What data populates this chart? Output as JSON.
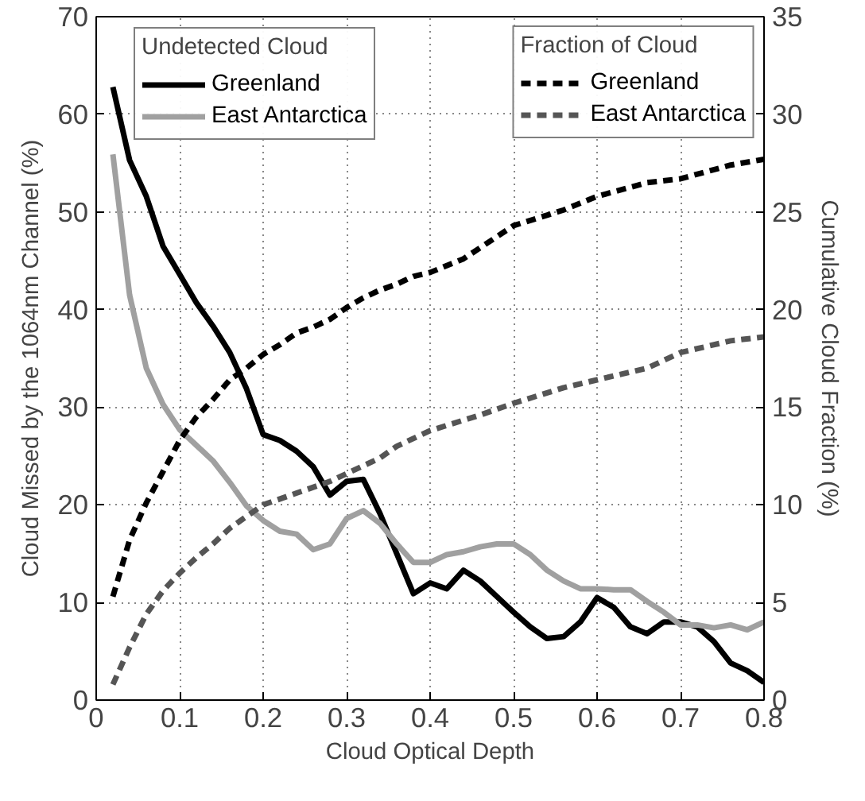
{
  "chart_data": {
    "type": "line",
    "xlabel": "Cloud Optical Depth",
    "ylabel": "Cloud Missed by the 1064nm Channel (%)",
    "y2label": "Cumulative Cloud Fraction (%)",
    "annotations": [
      "Undetected Cloud",
      "Fraction of Cloud"
    ],
    "xlim": [
      0,
      0.8
    ],
    "xticks": [
      0,
      0.1,
      0.2,
      0.3,
      0.4,
      0.5,
      0.6,
      0.7,
      0.8
    ],
    "ylim": [
      0,
      70
    ],
    "yticks": [
      0,
      10,
      20,
      30,
      40,
      50,
      60,
      70
    ],
    "y2lim": [
      0,
      35
    ],
    "y2ticks": [
      0,
      5,
      10,
      15,
      20,
      25,
      30,
      35
    ],
    "grid": true,
    "legend": "top",
    "series": [
      {
        "name": "Greenland",
        "color": "#000000",
        "line_style": "solid",
        "x": [
          0.02,
          0.04,
          0.06,
          0.08,
          0.1,
          0.12,
          0.14,
          0.16,
          0.18,
          0.2,
          0.22,
          0.24,
          0.26,
          0.28,
          0.3,
          0.32,
          0.34,
          0.36,
          0.38,
          0.4,
          0.42,
          0.44,
          0.46,
          0.48,
          0.5,
          0.52,
          0.54,
          0.56,
          0.58,
          0.6,
          0.62,
          0.64,
          0.66,
          0.68,
          0.7,
          0.72,
          0.74,
          0.76,
          0.78,
          0.8
        ],
        "values": [
          62.8,
          55.3,
          51.6,
          46.5,
          43.6,
          40.7,
          38.3,
          35.6,
          31.9,
          27.2,
          26.6,
          25.5,
          23.9,
          21.0,
          22.4,
          22.6,
          19.1,
          15.0,
          10.9,
          12.0,
          11.4,
          13.3,
          12.2,
          10.6,
          9.0,
          7.5,
          6.3,
          6.5,
          8.0,
          10.5,
          9.5,
          7.5,
          6.8,
          8.0,
          8.0,
          7.5,
          6.0,
          3.8,
          3.0,
          1.8
        ]
      },
      {
        "name": "East Antarctica",
        "color": "#a0a0a0",
        "line_style": "solid",
        "x": [
          0.02,
          0.04,
          0.06,
          0.08,
          0.1,
          0.12,
          0.14,
          0.16,
          0.18,
          0.2,
          0.22,
          0.24,
          0.26,
          0.28,
          0.3,
          0.32,
          0.34,
          0.36,
          0.38,
          0.4,
          0.42,
          0.44,
          0.46,
          0.48,
          0.5,
          0.52,
          0.54,
          0.56,
          0.58,
          0.6,
          0.62,
          0.64,
          0.66,
          0.68,
          0.7,
          0.72,
          0.74,
          0.76,
          0.78,
          0.8
        ],
        "values": [
          55.9,
          41.5,
          34.0,
          30.3,
          27.7,
          26.1,
          24.5,
          22.3,
          19.9,
          18.4,
          17.3,
          17.0,
          15.4,
          16.0,
          18.6,
          19.4,
          18.1,
          16.0,
          14.1,
          14.1,
          14.9,
          15.2,
          15.7,
          16.0,
          16.0,
          14.9,
          13.3,
          12.2,
          11.4,
          11.4,
          11.3,
          11.3,
          10.1,
          9.0,
          7.7,
          7.7,
          7.4,
          7.7,
          7.2,
          8.0
        ]
      },
      {
        "name": "Greenland",
        "color": "#000000",
        "line_style": "dashed",
        "axis": "y2",
        "x": [
          0.02,
          0.04,
          0.06,
          0.08,
          0.1,
          0.12,
          0.14,
          0.16,
          0.18,
          0.2,
          0.22,
          0.24,
          0.26,
          0.28,
          0.3,
          0.32,
          0.34,
          0.36,
          0.38,
          0.4,
          0.44,
          0.5,
          0.56,
          0.6,
          0.66,
          0.7,
          0.76,
          0.8
        ],
        "values": [
          5.3,
          8.2,
          10.1,
          11.7,
          13.3,
          14.5,
          15.4,
          16.4,
          17.0,
          17.7,
          18.2,
          18.8,
          19.1,
          19.5,
          20.1,
          20.6,
          21.0,
          21.3,
          21.7,
          21.9,
          22.6,
          24.3,
          25.1,
          25.8,
          26.5,
          26.7,
          27.4,
          27.7
        ]
      },
      {
        "name": "East Antarctica",
        "color": "#555555",
        "line_style": "dashed",
        "axis": "y2",
        "x": [
          0.02,
          0.04,
          0.06,
          0.08,
          0.1,
          0.12,
          0.14,
          0.16,
          0.18,
          0.2,
          0.24,
          0.28,
          0.3,
          0.34,
          0.36,
          0.4,
          0.46,
          0.5,
          0.56,
          0.6,
          0.66,
          0.7,
          0.76,
          0.8
        ],
        "values": [
          0.8,
          2.7,
          4.4,
          5.6,
          6.5,
          7.3,
          8.0,
          8.8,
          9.4,
          10.0,
          10.6,
          11.2,
          11.6,
          12.4,
          13.0,
          13.8,
          14.6,
          15.2,
          16.0,
          16.4,
          17.0,
          17.8,
          18.4,
          18.6
        ]
      }
    ]
  }
}
